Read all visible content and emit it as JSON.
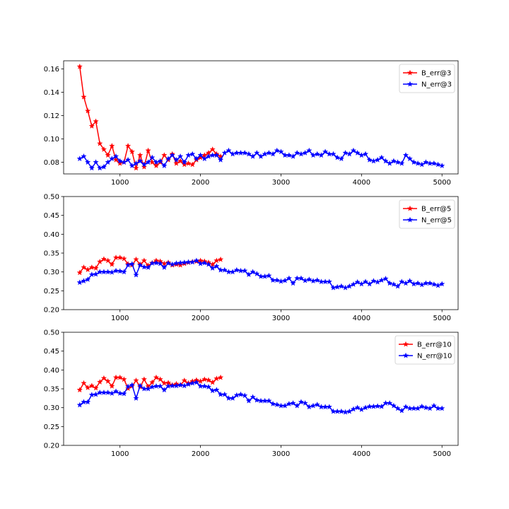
{
  "chart_data": [
    {
      "type": "line",
      "title": "",
      "xlabel": "",
      "ylabel": "",
      "xlim": [
        300,
        5200
      ],
      "ylim": [
        0.07,
        0.167
      ],
      "xticks": [
        1000,
        2000,
        3000,
        4000,
        5000
      ],
      "yticks": [
        0.08,
        0.1,
        0.12,
        0.14,
        0.16
      ],
      "ytick_labels": [
        "0.08",
        "0.10",
        "0.12",
        "0.14",
        "0.16"
      ],
      "grid": false,
      "legend_position": "top-right",
      "series": [
        {
          "name": "B_err@3",
          "color": "#ff0000",
          "marker": "star",
          "x": [
            500,
            550,
            600,
            650,
            700,
            750,
            800,
            850,
            900,
            950,
            1000,
            1050,
            1100,
            1150,
            1200,
            1250,
            1300,
            1350,
            1400,
            1450,
            1500,
            1550,
            1600,
            1650,
            1700,
            1750,
            1800,
            1850,
            1900,
            1950,
            2000,
            2050,
            2100,
            2150,
            2200,
            2250
          ],
          "y": [
            0.162,
            0.136,
            0.124,
            0.111,
            0.115,
            0.096,
            0.091,
            0.086,
            0.094,
            0.082,
            0.079,
            0.08,
            0.094,
            0.089,
            0.075,
            0.086,
            0.076,
            0.09,
            0.08,
            0.077,
            0.08,
            0.086,
            0.082,
            0.087,
            0.079,
            0.081,
            0.078,
            0.079,
            0.078,
            0.082,
            0.084,
            0.086,
            0.088,
            0.091,
            0.087,
            0.085
          ]
        },
        {
          "name": "N_err@3",
          "color": "#0000ff",
          "marker": "star",
          "x": [
            500,
            550,
            600,
            650,
            700,
            750,
            800,
            850,
            900,
            950,
            1000,
            1050,
            1100,
            1150,
            1200,
            1250,
            1300,
            1350,
            1400,
            1450,
            1500,
            1550,
            1600,
            1650,
            1700,
            1750,
            1800,
            1850,
            1900,
            1950,
            2000,
            2050,
            2100,
            2150,
            2200,
            2250,
            2300,
            2350,
            2400,
            2450,
            2500,
            2550,
            2600,
            2650,
            2700,
            2750,
            2800,
            2850,
            2900,
            2950,
            3000,
            3050,
            3100,
            3150,
            3200,
            3250,
            3300,
            3350,
            3400,
            3450,
            3500,
            3550,
            3600,
            3650,
            3700,
            3750,
            3800,
            3850,
            3900,
            3950,
            4000,
            4050,
            4100,
            4150,
            4200,
            4250,
            4300,
            4350,
            4400,
            4450,
            4500,
            4550,
            4600,
            4650,
            4700,
            4750,
            4800,
            4850,
            4900,
            4950,
            5000
          ],
          "y": [
            0.083,
            0.085,
            0.08,
            0.075,
            0.08,
            0.075,
            0.076,
            0.08,
            0.083,
            0.085,
            0.081,
            0.08,
            0.082,
            0.077,
            0.079,
            0.081,
            0.078,
            0.08,
            0.084,
            0.08,
            0.081,
            0.077,
            0.083,
            0.086,
            0.082,
            0.085,
            0.08,
            0.086,
            0.087,
            0.083,
            0.086,
            0.083,
            0.085,
            0.086,
            0.086,
            0.082,
            0.088,
            0.09,
            0.087,
            0.088,
            0.088,
            0.088,
            0.087,
            0.085,
            0.088,
            0.085,
            0.087,
            0.088,
            0.087,
            0.09,
            0.089,
            0.086,
            0.086,
            0.085,
            0.088,
            0.087,
            0.088,
            0.09,
            0.086,
            0.087,
            0.086,
            0.089,
            0.087,
            0.087,
            0.084,
            0.083,
            0.088,
            0.087,
            0.09,
            0.088,
            0.086,
            0.087,
            0.082,
            0.081,
            0.082,
            0.084,
            0.081,
            0.079,
            0.081,
            0.08,
            0.079,
            0.086,
            0.083,
            0.08,
            0.079,
            0.078,
            0.08,
            0.079,
            0.079,
            0.078,
            0.077
          ]
        }
      ]
    },
    {
      "type": "line",
      "title": "",
      "xlabel": "",
      "ylabel": "",
      "xlim": [
        300,
        5200
      ],
      "ylim": [
        0.2,
        0.5
      ],
      "xticks": [
        1000,
        2000,
        3000,
        4000,
        5000
      ],
      "yticks": [
        0.2,
        0.25,
        0.3,
        0.35,
        0.4,
        0.45,
        0.5
      ],
      "ytick_labels": [
        "0.20",
        "0.25",
        "0.30",
        "0.35",
        "0.40",
        "0.45",
        "0.50"
      ],
      "grid": false,
      "legend_position": "top-right",
      "series": [
        {
          "name": "B_err@5",
          "color": "#ff0000",
          "marker": "star",
          "x": [
            500,
            550,
            600,
            650,
            700,
            750,
            800,
            850,
            900,
            950,
            1000,
            1050,
            1100,
            1150,
            1200,
            1250,
            1300,
            1350,
            1400,
            1450,
            1500,
            1550,
            1600,
            1650,
            1700,
            1750,
            1800,
            1850,
            1900,
            1950,
            2000,
            2050,
            2100,
            2150,
            2200,
            2250
          ],
          "y": [
            0.298,
            0.312,
            0.306,
            0.312,
            0.31,
            0.327,
            0.334,
            0.33,
            0.32,
            0.338,
            0.338,
            0.335,
            0.321,
            0.318,
            0.333,
            0.32,
            0.33,
            0.317,
            0.324,
            0.33,
            0.328,
            0.322,
            0.325,
            0.318,
            0.32,
            0.318,
            0.322,
            0.325,
            0.327,
            0.328,
            0.33,
            0.328,
            0.325,
            0.32,
            0.33,
            0.333
          ]
        },
        {
          "name": "N_err@5",
          "color": "#0000ff",
          "marker": "star",
          "x": [
            500,
            550,
            600,
            650,
            700,
            750,
            800,
            850,
            900,
            950,
            1000,
            1050,
            1100,
            1150,
            1200,
            1250,
            1300,
            1350,
            1400,
            1450,
            1500,
            1550,
            1600,
            1650,
            1700,
            1750,
            1800,
            1850,
            1900,
            1950,
            2000,
            2050,
            2100,
            2150,
            2200,
            2250,
            2300,
            2350,
            2400,
            2450,
            2500,
            2550,
            2600,
            2650,
            2700,
            2750,
            2800,
            2850,
            2900,
            2950,
            3000,
            3050,
            3100,
            3150,
            3200,
            3250,
            3300,
            3350,
            3400,
            3450,
            3500,
            3550,
            3600,
            3650,
            3700,
            3750,
            3800,
            3850,
            3900,
            3950,
            4000,
            4050,
            4100,
            4150,
            4200,
            4250,
            4300,
            4350,
            4400,
            4450,
            4500,
            4550,
            4600,
            4650,
            4700,
            4750,
            4800,
            4850,
            4900,
            4950,
            5000
          ],
          "y": [
            0.272,
            0.276,
            0.28,
            0.293,
            0.294,
            0.3,
            0.3,
            0.3,
            0.299,
            0.303,
            0.302,
            0.3,
            0.318,
            0.321,
            0.292,
            0.318,
            0.313,
            0.312,
            0.323,
            0.324,
            0.322,
            0.312,
            0.323,
            0.32,
            0.323,
            0.324,
            0.325,
            0.326,
            0.326,
            0.33,
            0.322,
            0.324,
            0.32,
            0.31,
            0.315,
            0.305,
            0.305,
            0.3,
            0.3,
            0.305,
            0.303,
            0.303,
            0.293,
            0.3,
            0.295,
            0.288,
            0.288,
            0.29,
            0.278,
            0.278,
            0.275,
            0.277,
            0.283,
            0.27,
            0.283,
            0.283,
            0.277,
            0.28,
            0.276,
            0.278,
            0.274,
            0.274,
            0.274,
            0.258,
            0.26,
            0.262,
            0.258,
            0.262,
            0.267,
            0.273,
            0.268,
            0.274,
            0.268,
            0.276,
            0.273,
            0.278,
            0.282,
            0.27,
            0.267,
            0.262,
            0.274,
            0.27,
            0.276,
            0.268,
            0.27,
            0.266,
            0.27,
            0.27,
            0.267,
            0.264,
            0.268
          ]
        }
      ]
    },
    {
      "type": "line",
      "title": "",
      "xlabel": "",
      "ylabel": "",
      "xlim": [
        300,
        5200
      ],
      "ylim": [
        0.2,
        0.5
      ],
      "xticks": [
        1000,
        2000,
        3000,
        4000,
        5000
      ],
      "yticks": [
        0.2,
        0.25,
        0.3,
        0.35,
        0.4,
        0.45,
        0.5
      ],
      "ytick_labels": [
        "0.20",
        "0.25",
        "0.30",
        "0.35",
        "0.40",
        "0.45",
        "0.50"
      ],
      "grid": false,
      "legend_position": "top-right",
      "series": [
        {
          "name": "B_err@10",
          "color": "#ff0000",
          "marker": "star",
          "x": [
            500,
            550,
            600,
            650,
            700,
            750,
            800,
            850,
            900,
            950,
            1000,
            1050,
            1100,
            1150,
            1200,
            1250,
            1300,
            1350,
            1400,
            1450,
            1500,
            1550,
            1600,
            1650,
            1700,
            1750,
            1800,
            1850,
            1900,
            1950,
            2000,
            2050,
            2100,
            2150,
            2200,
            2250
          ],
          "y": [
            0.347,
            0.365,
            0.353,
            0.358,
            0.352,
            0.368,
            0.378,
            0.37,
            0.357,
            0.38,
            0.38,
            0.375,
            0.351,
            0.357,
            0.372,
            0.355,
            0.375,
            0.356,
            0.367,
            0.38,
            0.375,
            0.365,
            0.366,
            0.36,
            0.363,
            0.36,
            0.372,
            0.365,
            0.37,
            0.373,
            0.37,
            0.375,
            0.373,
            0.367,
            0.377,
            0.38
          ]
        },
        {
          "name": "N_err@10",
          "color": "#0000ff",
          "marker": "star",
          "x": [
            500,
            550,
            600,
            650,
            700,
            750,
            800,
            850,
            900,
            950,
            1000,
            1050,
            1100,
            1150,
            1200,
            1250,
            1300,
            1350,
            1400,
            1450,
            1500,
            1550,
            1600,
            1650,
            1700,
            1750,
            1800,
            1850,
            1900,
            1950,
            2000,
            2050,
            2100,
            2150,
            2200,
            2250,
            2300,
            2350,
            2400,
            2450,
            2500,
            2550,
            2600,
            2650,
            2700,
            2750,
            2800,
            2850,
            2900,
            2950,
            3000,
            3050,
            3100,
            3150,
            3200,
            3250,
            3300,
            3350,
            3400,
            3450,
            3500,
            3550,
            3600,
            3650,
            3700,
            3750,
            3800,
            3850,
            3900,
            3950,
            4000,
            4050,
            4100,
            4150,
            4200,
            4250,
            4300,
            4350,
            4400,
            4450,
            4500,
            4550,
            4600,
            4650,
            4700,
            4750,
            4800,
            4850,
            4900,
            4950,
            5000
          ],
          "y": [
            0.307,
            0.315,
            0.315,
            0.334,
            0.335,
            0.34,
            0.34,
            0.34,
            0.338,
            0.343,
            0.338,
            0.337,
            0.356,
            0.36,
            0.325,
            0.358,
            0.35,
            0.35,
            0.355,
            0.357,
            0.357,
            0.347,
            0.357,
            0.358,
            0.358,
            0.36,
            0.358,
            0.362,
            0.365,
            0.367,
            0.357,
            0.357,
            0.355,
            0.345,
            0.347,
            0.335,
            0.335,
            0.325,
            0.325,
            0.333,
            0.335,
            0.332,
            0.318,
            0.328,
            0.32,
            0.318,
            0.318,
            0.318,
            0.31,
            0.308,
            0.305,
            0.305,
            0.31,
            0.312,
            0.305,
            0.315,
            0.312,
            0.302,
            0.305,
            0.308,
            0.302,
            0.302,
            0.302,
            0.29,
            0.29,
            0.29,
            0.288,
            0.29,
            0.296,
            0.3,
            0.295,
            0.3,
            0.303,
            0.303,
            0.304,
            0.303,
            0.312,
            0.312,
            0.305,
            0.298,
            0.292,
            0.302,
            0.298,
            0.298,
            0.298,
            0.303,
            0.3,
            0.298,
            0.305,
            0.298,
            0.298
          ]
        }
      ]
    }
  ]
}
